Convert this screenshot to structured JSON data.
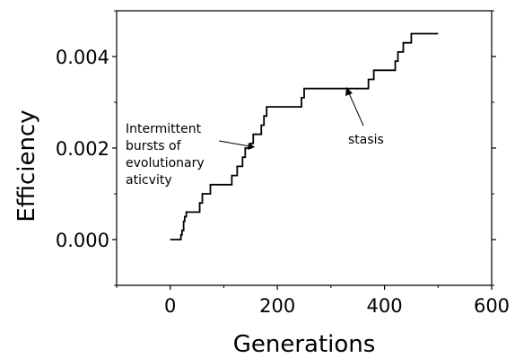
{
  "chart_data": {
    "type": "line",
    "xlabel": "Generations",
    "ylabel": "Efficiency",
    "xlim": [
      -100,
      600
    ],
    "ylim": [
      -0.001,
      0.005
    ],
    "xticks": [
      0,
      200,
      400,
      600
    ],
    "xtick_labels": [
      "0",
      "200",
      "400",
      "600"
    ],
    "yticks": [
      0.0,
      0.002,
      0.004
    ],
    "ytick_labels": [
      "0.000",
      "0.002",
      "0.004"
    ],
    "grid": false,
    "series": [
      {
        "name": "",
        "color": "#000000",
        "step": true,
        "x": [
          0,
          20,
          22,
          25,
          27,
          30,
          55,
          60,
          75,
          80,
          115,
          125,
          135,
          140,
          150,
          155,
          170,
          175,
          180,
          195,
          245,
          250,
          370,
          380,
          420,
          425,
          435,
          440,
          450,
          455,
          500
        ],
        "y": [
          0.0,
          0.0001,
          0.0002,
          0.0004,
          0.0005,
          0.0006,
          0.0008,
          0.001,
          0.0012,
          0.0012,
          0.0014,
          0.0016,
          0.0018,
          0.002,
          0.0021,
          0.0023,
          0.0025,
          0.0027,
          0.0029,
          0.0029,
          0.0031,
          0.0033,
          0.0035,
          0.0037,
          0.0039,
          0.0041,
          0.0043,
          0.0043,
          0.0045,
          0.0045,
          0.0045
        ]
      }
    ],
    "annotations": [
      {
        "lines": [
          "Intermittent",
          "bursts of",
          "evolutionary",
          "aticvity"
        ],
        "target": [
          152,
          0.0021
        ]
      },
      {
        "lines": [
          "stasis"
        ],
        "target": [
          320,
          0.0033
        ]
      }
    ]
  }
}
